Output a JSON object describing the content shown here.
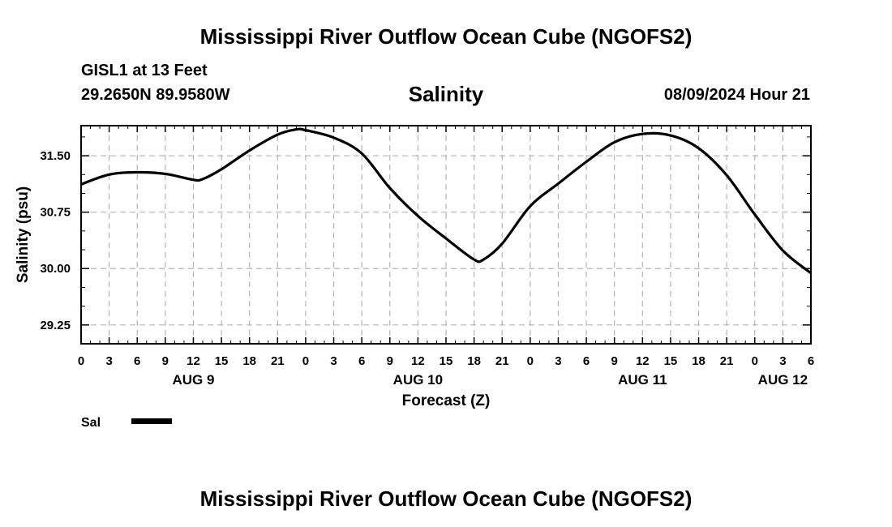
{
  "page": {
    "title": "Mississippi River Outflow Ocean Cube (NGOFS2)",
    "station": "GISL1 at 13 Feet",
    "coordinates": "29.2650N  89.9580W",
    "datetime": "08/09/2024 Hour 21",
    "bottom_title": "Mississippi River Outflow Ocean Cube (NGOFS2)"
  },
  "chart_data": {
    "type": "line",
    "title": "Salinity",
    "xlabel": "Forecast (Z)",
    "ylabel": "Salinity (psu)",
    "ylim": [
      29.0,
      31.9
    ],
    "xlim": [
      0,
      78
    ],
    "yticks": [
      29.25,
      30.0,
      30.75,
      31.5
    ],
    "ytick_labels": [
      "29.25",
      "30.00",
      "30.75",
      "31.50"
    ],
    "xticks": [
      0,
      3,
      6,
      9,
      12,
      15,
      18,
      21,
      24,
      27,
      30,
      33,
      36,
      39,
      42,
      45,
      48,
      51,
      54,
      57,
      60,
      63,
      66,
      69,
      72,
      75,
      78
    ],
    "xtick_labels": [
      "0",
      "3",
      "6",
      "9",
      "12",
      "15",
      "18",
      "21",
      "0",
      "3",
      "6",
      "9",
      "12",
      "15",
      "18",
      "21",
      "0",
      "3",
      "6",
      "9",
      "12",
      "15",
      "18",
      "21",
      "0",
      "3",
      "6"
    ],
    "day_labels": [
      {
        "label": "AUG 9",
        "x": 12
      },
      {
        "label": "AUG 10",
        "x": 36
      },
      {
        "label": "AUG 11",
        "x": 60
      },
      {
        "label": "AUG 12",
        "x": 75
      }
    ],
    "grid": true,
    "legend": {
      "position": "bottom-left"
    },
    "series": [
      {
        "name": "Sal",
        "color": "#000000",
        "x": [
          0,
          3,
          6,
          9,
          12,
          13,
          15,
          18,
          21,
          23,
          24,
          27,
          30,
          33,
          36,
          39,
          42,
          43,
          45,
          48,
          51,
          54,
          57,
          60,
          63,
          66,
          69,
          72,
          75,
          78
        ],
        "y": [
          31.12,
          31.25,
          31.28,
          31.26,
          31.18,
          31.19,
          31.32,
          31.57,
          31.78,
          31.85,
          31.84,
          31.74,
          31.53,
          31.07,
          30.7,
          30.4,
          30.12,
          30.12,
          30.33,
          30.83,
          31.13,
          31.42,
          31.68,
          31.79,
          31.77,
          31.6,
          31.24,
          30.72,
          30.24,
          29.94
        ]
      }
    ]
  }
}
